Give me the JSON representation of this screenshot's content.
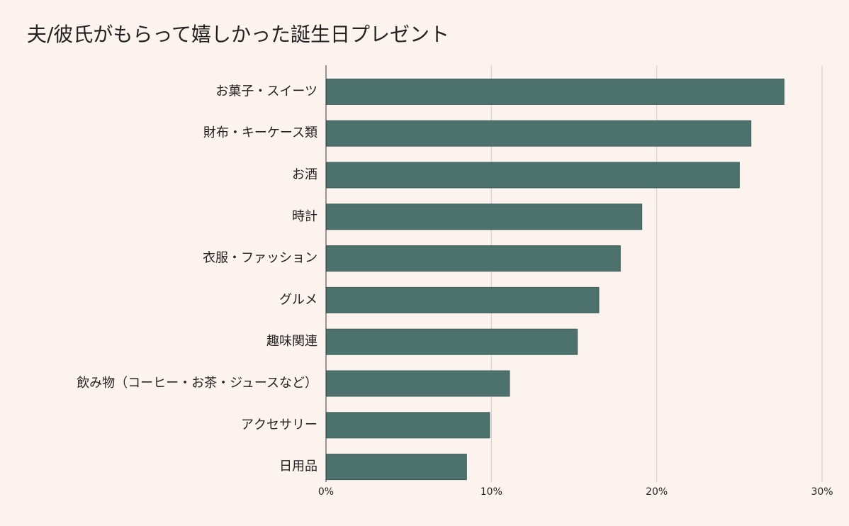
{
  "chart_data": {
    "type": "hbar",
    "title": "夫/彼氏がもらって嬉しかった誕生日プレゼント",
    "categories": [
      "お菓子・スイーツ",
      "財布・キーケース類",
      "お酒",
      "時計",
      "衣服・ファッション",
      "グルメ",
      "趣味関連",
      "飲み物（コーヒー・お茶・ジュースなど）",
      "アクセサリー",
      "日用品"
    ],
    "values": [
      27.7,
      25.7,
      25.0,
      19.1,
      17.8,
      16.5,
      15.2,
      11.1,
      9.9,
      8.5
    ],
    "color": "#4d726d",
    "xlim": [
      0,
      30
    ],
    "xticks": [
      {
        "value": 0,
        "label": "0%"
      },
      {
        "value": 10,
        "label": "10%"
      },
      {
        "value": 20,
        "label": "20%"
      },
      {
        "value": 30,
        "label": "30%"
      }
    ],
    "grid": true
  }
}
